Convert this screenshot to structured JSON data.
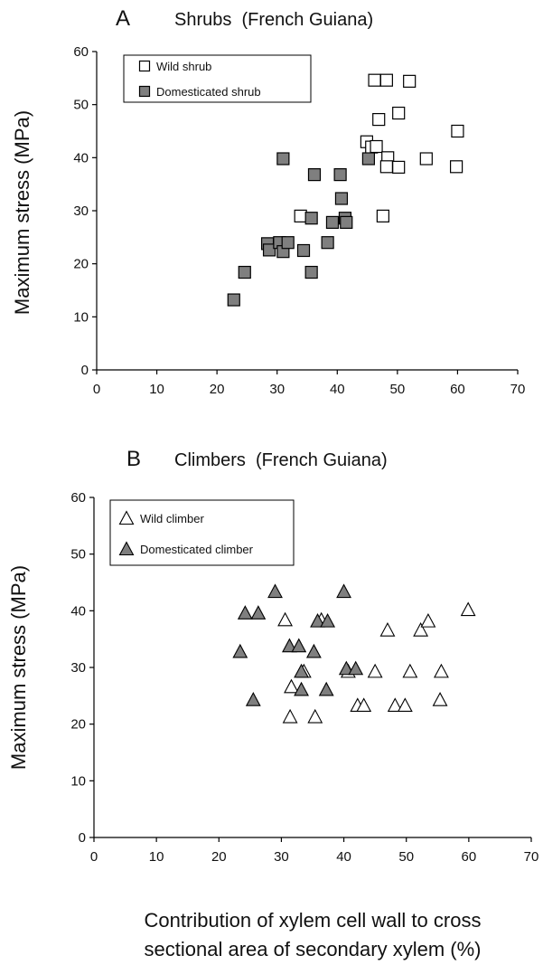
{
  "figure": {
    "xlabel_line1": "Contribution of xylem cell wall to cross",
    "xlabel_line2": "sectional area of secondary xylem (%)"
  },
  "chart_data": [
    {
      "type": "scatter",
      "panel": "A",
      "title": "Shrubs  (French Guiana)",
      "xlabel": "Contribution of xylem cell wall to cross sectional area of secondary xylem (%)",
      "ylabel": "Maximum stress (MPa)",
      "xlim": [
        0,
        70
      ],
      "ylim": [
        0,
        60
      ],
      "xticks": [
        0,
        10,
        20,
        30,
        40,
        50,
        60,
        70
      ],
      "yticks": [
        0,
        10,
        20,
        30,
        40,
        50,
        60
      ],
      "grid": false,
      "legend_position": "top-left",
      "series": [
        {
          "name": "Wild shrub",
          "marker": "square",
          "fill": "#ffffff",
          "points": [
            [
              46.2,
              54.6
            ],
            [
              48.2,
              54.6
            ],
            [
              52.0,
              54.4
            ],
            [
              50.2,
              48.4
            ],
            [
              46.9,
              47.2
            ],
            [
              44.9,
              43.0
            ],
            [
              45.7,
              42.0
            ],
            [
              46.5,
              42.1
            ],
            [
              48.4,
              40.0
            ],
            [
              48.2,
              38.3
            ],
            [
              50.2,
              38.2
            ],
            [
              54.8,
              39.8
            ],
            [
              60.0,
              45.0
            ],
            [
              59.8,
              38.3
            ],
            [
              47.6,
              29.0
            ],
            [
              33.9,
              29.0
            ]
          ]
        },
        {
          "name": "Domesticated shrub",
          "marker": "square",
          "fill": "#7f7f7f",
          "points": [
            [
              22.8,
              13.2
            ],
            [
              24.6,
              18.4
            ],
            [
              28.4,
              23.8
            ],
            [
              28.7,
              22.6
            ],
            [
              30.4,
              24.0
            ],
            [
              31.0,
              22.3
            ],
            [
              31.8,
              24.0
            ],
            [
              31.0,
              39.8
            ],
            [
              34.4,
              22.5
            ],
            [
              35.7,
              28.6
            ],
            [
              35.7,
              18.4
            ],
            [
              36.2,
              36.8
            ],
            [
              38.4,
              24.0
            ],
            [
              39.2,
              27.8
            ],
            [
              40.5,
              36.8
            ],
            [
              40.7,
              32.3
            ],
            [
              41.3,
              28.6
            ],
            [
              41.5,
              27.8
            ],
            [
              45.2,
              39.8
            ]
          ]
        }
      ]
    },
    {
      "type": "scatter",
      "panel": "B",
      "title": "Climbers  (French Guiana)",
      "xlabel": "Contribution of xylem cell wall to cross sectional area of secondary xylem (%)",
      "ylabel": "Maximum stress (MPa)",
      "xlim": [
        0,
        70
      ],
      "ylim": [
        0,
        60
      ],
      "xticks": [
        0,
        10,
        20,
        30,
        40,
        50,
        60,
        70
      ],
      "yticks": [
        0,
        10,
        20,
        30,
        40,
        50,
        60
      ],
      "grid": false,
      "legend_position": "top-left",
      "series": [
        {
          "name": "Wild climber",
          "marker": "triangle",
          "fill": "#ffffff",
          "points": [
            [
              30.6,
              38.4
            ],
            [
              31.4,
              21.3
            ],
            [
              31.6,
              26.6
            ],
            [
              33.6,
              29.3
            ],
            [
              35.4,
              21.3
            ],
            [
              36.4,
              38.4
            ],
            [
              40.7,
              29.3
            ],
            [
              42.2,
              23.3
            ],
            [
              43.2,
              23.3
            ],
            [
              45.0,
              29.3
            ],
            [
              47.0,
              36.6
            ],
            [
              48.2,
              23.3
            ],
            [
              49.8,
              23.3
            ],
            [
              50.6,
              29.3
            ],
            [
              52.3,
              36.6
            ],
            [
              53.5,
              38.2
            ],
            [
              55.4,
              24.3
            ],
            [
              55.6,
              29.3
            ],
            [
              59.9,
              40.2
            ]
          ]
        },
        {
          "name": "Domesticated climber",
          "marker": "triangle",
          "fill": "#7f7f7f",
          "points": [
            [
              23.4,
              32.8
            ],
            [
              24.2,
              39.6
            ],
            [
              25.5,
              24.3
            ],
            [
              26.3,
              39.6
            ],
            [
              29.0,
              43.4
            ],
            [
              31.3,
              33.8
            ],
            [
              32.8,
              33.8
            ],
            [
              33.2,
              29.3
            ],
            [
              33.2,
              26.1
            ],
            [
              35.2,
              32.8
            ],
            [
              35.8,
              38.2
            ],
            [
              37.2,
              26.1
            ],
            [
              37.4,
              38.2
            ],
            [
              40.0,
              43.4
            ],
            [
              40.4,
              29.8
            ],
            [
              41.9,
              29.8
            ]
          ]
        }
      ]
    }
  ]
}
